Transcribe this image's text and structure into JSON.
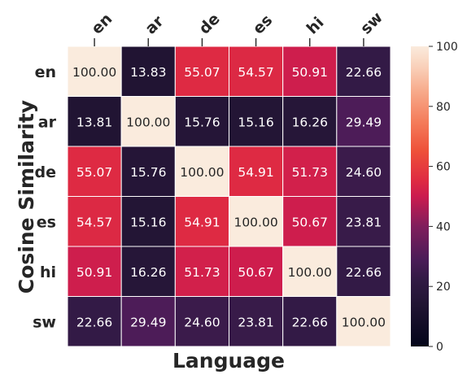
{
  "chart_data": {
    "type": "heatmap",
    "title": "",
    "xlabel": "Language",
    "ylabel": "Cosine Similarity",
    "x_categories": [
      "en",
      "ar",
      "de",
      "es",
      "hi",
      "sw"
    ],
    "y_categories": [
      "en",
      "ar",
      "de",
      "es",
      "hi",
      "sw"
    ],
    "values": [
      [
        100.0,
        13.83,
        55.07,
        54.57,
        50.91,
        22.66
      ],
      [
        13.81,
        100.0,
        15.76,
        15.16,
        16.26,
        29.49
      ],
      [
        55.07,
        15.76,
        100.0,
        54.91,
        51.73,
        24.6
      ],
      [
        54.57,
        15.16,
        54.91,
        100.0,
        50.67,
        23.81
      ],
      [
        50.91,
        16.26,
        51.73,
        50.67,
        100.0,
        22.66
      ],
      [
        22.66,
        29.49,
        24.6,
        23.81,
        22.66,
        100.0
      ]
    ],
    "value_labels": [
      [
        "100.00",
        "13.83",
        "55.07",
        "54.57",
        "50.91",
        "22.66"
      ],
      [
        "13.81",
        "100.00",
        "15.76",
        "15.16",
        "16.26",
        "29.49"
      ],
      [
        "55.07",
        "15.76",
        "100.00",
        "54.91",
        "51.73",
        "24.60"
      ],
      [
        "54.57",
        "15.16",
        "54.91",
        "100.00",
        "50.67",
        "23.81"
      ],
      [
        "50.91",
        "16.26",
        "51.73",
        "50.67",
        "100.00",
        "22.66"
      ],
      [
        "22.66",
        "29.49",
        "24.60",
        "23.81",
        "22.66",
        "100.00"
      ]
    ],
    "colorbar": {
      "range": [
        0,
        100
      ],
      "ticks": [
        "0",
        "20",
        "40",
        "60",
        "80",
        "100"
      ],
      "colormap": "rocket"
    },
    "xtick_position": "top",
    "grid": false,
    "legend": "none"
  }
}
